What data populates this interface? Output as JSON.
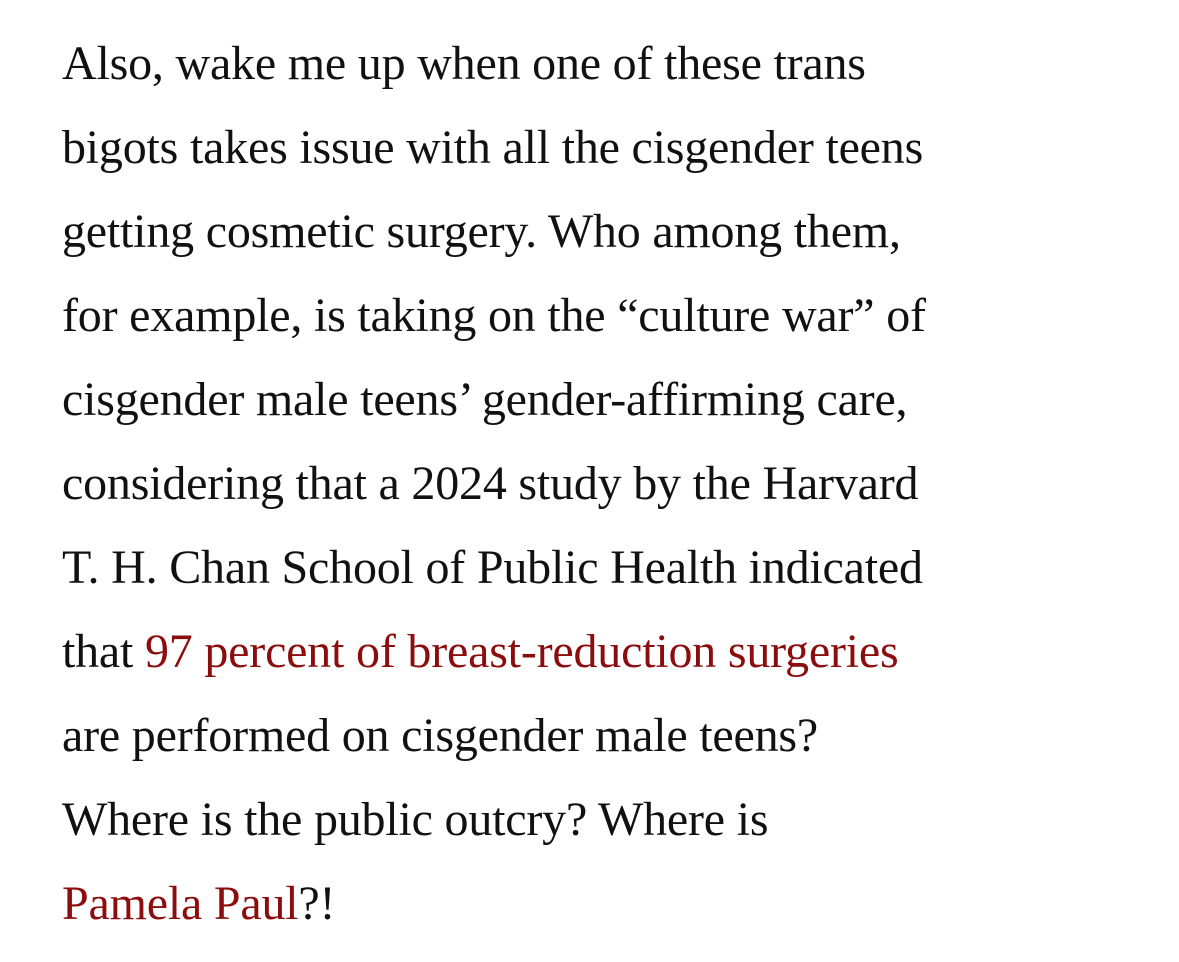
{
  "paragraph": {
    "lines": [
      "Also, wake me up when one of these trans",
      "bigots takes issue with all the cisgender teens",
      "getting cosmetic surgery. Who among them,",
      "for example, is taking on the “culture war” of",
      "cisgender male teens’ gender-affirming care,",
      "considering that a 2024 study by the Harvard",
      "T. H. Chan School of Public Health indicated"
    ],
    "line8_prefix": "that ",
    "link_study": "97 percent of breast-reduction surgeries",
    "line9": "are performed on cisgender male teens?",
    "line10": "Where is the public outcry? Where is",
    "link_person": "Pamela Paul",
    "line11_suffix": "?!"
  },
  "colors": {
    "text": "#111111",
    "link": "#8b0d0d",
    "background": "#ffffff"
  }
}
